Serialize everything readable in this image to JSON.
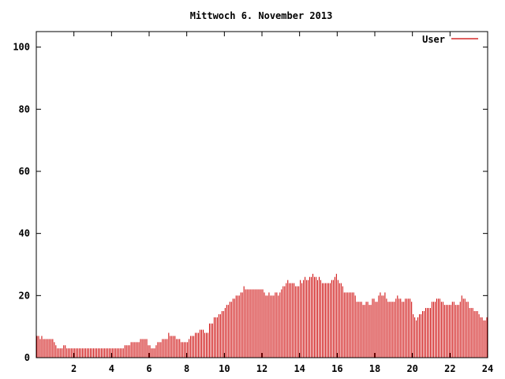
{
  "chart_data": {
    "type": "bar",
    "title": "Mittwoch 6. November 2013",
    "xlabel": "",
    "ylabel": "",
    "xlim": [
      0,
      24
    ],
    "ylim": [
      0,
      105
    ],
    "x_ticks": [
      2,
      4,
      6,
      8,
      10,
      12,
      14,
      16,
      18,
      20,
      22,
      24
    ],
    "x_tick_labels": [
      "2",
      "4",
      "6",
      "8",
      "10",
      "12",
      "14",
      "16",
      "18",
      "20",
      "22",
      "24"
    ],
    "y_ticks": [
      0,
      20,
      40,
      60,
      80,
      100
    ],
    "y_tick_labels": [
      "0",
      "20",
      "40",
      "60",
      "80",
      "100"
    ],
    "grid": false,
    "legend_position": "top-right",
    "bar_color": "#cc0000",
    "axis_color": "#000000",
    "samples_per_hour": 12,
    "series": [
      {
        "name": "User",
        "values": [
          7,
          7,
          6,
          7,
          6,
          6,
          6,
          6,
          6,
          6,
          6,
          5,
          4,
          3,
          3,
          3,
          3,
          4,
          4,
          3,
          3,
          3,
          3,
          3,
          3,
          3,
          3,
          3,
          3,
          3,
          3,
          3,
          3,
          3,
          3,
          3,
          3,
          3,
          3,
          3,
          3,
          3,
          3,
          3,
          3,
          3,
          3,
          3,
          3,
          3,
          3,
          3,
          3,
          3,
          3,
          3,
          4,
          4,
          4,
          4,
          5,
          5,
          5,
          5,
          5,
          5,
          6,
          6,
          6,
          6,
          6,
          4,
          4,
          3,
          3,
          3,
          4,
          5,
          5,
          5,
          6,
          6,
          6,
          6,
          8,
          7,
          7,
          7,
          7,
          6,
          6,
          6,
          5,
          5,
          5,
          5,
          5,
          6,
          7,
          7,
          7,
          8,
          8,
          8,
          9,
          9,
          9,
          8,
          8,
          8,
          11,
          11,
          11,
          13,
          13,
          13,
          14,
          14,
          15,
          15,
          16,
          17,
          17,
          18,
          18,
          19,
          19,
          20,
          20,
          20,
          21,
          21,
          23,
          22,
          22,
          22,
          22,
          22,
          22,
          22,
          22,
          22,
          22,
          22,
          22,
          21,
          20,
          20,
          21,
          20,
          20,
          20,
          21,
          21,
          20,
          21,
          22,
          23,
          23,
          24,
          25,
          24,
          24,
          24,
          24,
          23,
          23,
          23,
          25,
          24,
          25,
          26,
          25,
          25,
          26,
          26,
          27,
          26,
          26,
          25,
          26,
          25,
          24,
          24,
          24,
          24,
          24,
          24,
          25,
          25,
          26,
          27,
          25,
          24,
          24,
          23,
          21,
          21,
          21,
          21,
          21,
          21,
          21,
          20,
          18,
          18,
          18,
          18,
          17,
          17,
          18,
          18,
          17,
          17,
          19,
          19,
          18,
          18,
          20,
          21,
          20,
          20,
          21,
          19,
          18,
          18,
          18,
          18,
          18,
          19,
          20,
          19,
          19,
          18,
          18,
          19,
          19,
          19,
          19,
          18,
          14,
          13,
          12,
          13,
          14,
          14,
          15,
          15,
          16,
          16,
          16,
          16,
          18,
          18,
          18,
          19,
          19,
          19,
          18,
          18,
          17,
          17,
          17,
          17,
          17,
          18,
          18,
          17,
          17,
          17,
          18,
          20,
          19,
          19,
          18,
          18,
          16,
          16,
          16,
          15,
          15,
          15,
          14,
          13,
          13,
          12,
          12,
          13
        ]
      }
    ]
  }
}
